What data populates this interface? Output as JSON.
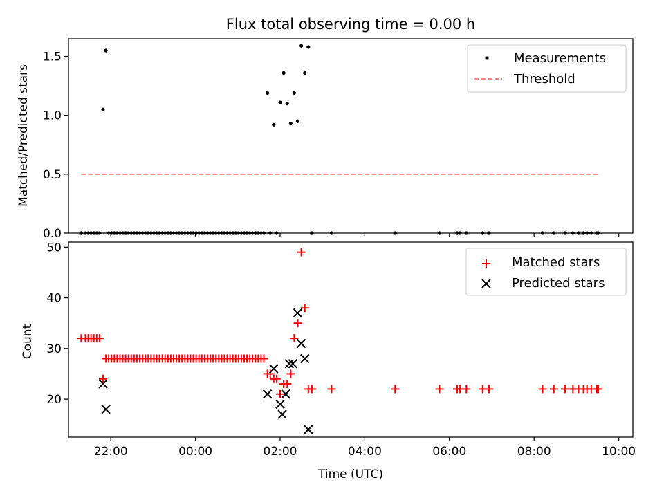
{
  "title": "Flux total observing time = 0.00 h",
  "chart_data": [
    {
      "type": "scatter",
      "ylabel": "Matched/Predicted stars",
      "xlim": [
        "21:00",
        "10:20"
      ],
      "ylim": [
        0,
        1.65
      ],
      "yticks": [
        0.0,
        0.5,
        1.0,
        1.5
      ],
      "yticklabels": [
        "0.0",
        "0.5",
        "1.0",
        "1.5"
      ],
      "xticks": [
        "22:00",
        "00:00",
        "02:00",
        "04:00",
        "06:00",
        "08:00",
        "10:00"
      ],
      "legend": {
        "placement": "upper right",
        "entries": [
          "Measurements",
          "Threshold"
        ]
      },
      "series": [
        {
          "name": "Measurements",
          "marker": "dot",
          "color": "#000000",
          "points": [
            [
              "21:18",
              0
            ],
            [
              "21:24",
              0
            ],
            [
              "21:28",
              0
            ],
            [
              "21:32",
              0
            ],
            [
              "21:36",
              0
            ],
            [
              "21:40",
              0
            ],
            [
              "21:44",
              0
            ],
            [
              "21:49",
              1.05
            ],
            [
              "21:53",
              1.55
            ],
            [
              "21:57",
              0
            ],
            [
              "22:01",
              0
            ],
            [
              "22:05",
              0
            ],
            [
              "22:09",
              0
            ],
            [
              "22:13",
              0
            ],
            [
              "22:17",
              0
            ],
            [
              "22:21",
              0
            ],
            [
              "22:25",
              0
            ],
            [
              "22:29",
              0
            ],
            [
              "22:33",
              0
            ],
            [
              "22:37",
              0
            ],
            [
              "22:41",
              0
            ],
            [
              "22:45",
              0
            ],
            [
              "22:49",
              0
            ],
            [
              "22:53",
              0
            ],
            [
              "22:57",
              0
            ],
            [
              "23:01",
              0
            ],
            [
              "23:05",
              0
            ],
            [
              "23:09",
              0
            ],
            [
              "23:13",
              0
            ],
            [
              "23:17",
              0
            ],
            [
              "23:21",
              0
            ],
            [
              "23:25",
              0
            ],
            [
              "23:29",
              0
            ],
            [
              "23:33",
              0
            ],
            [
              "23:37",
              0
            ],
            [
              "23:41",
              0
            ],
            [
              "23:45",
              0
            ],
            [
              "23:49",
              0
            ],
            [
              "23:53",
              0
            ],
            [
              "23:57",
              0
            ],
            [
              "00:01",
              0
            ],
            [
              "00:05",
              0
            ],
            [
              "00:09",
              0
            ],
            [
              "00:13",
              0
            ],
            [
              "00:17",
              0
            ],
            [
              "00:21",
              0
            ],
            [
              "00:25",
              0
            ],
            [
              "00:29",
              0
            ],
            [
              "00:33",
              0
            ],
            [
              "00:37",
              0
            ],
            [
              "00:41",
              0
            ],
            [
              "00:45",
              0
            ],
            [
              "00:49",
              0
            ],
            [
              "00:53",
              0
            ],
            [
              "00:57",
              0
            ],
            [
              "01:01",
              0
            ],
            [
              "01:05",
              0
            ],
            [
              "01:09",
              0
            ],
            [
              "01:13",
              0
            ],
            [
              "01:17",
              0
            ],
            [
              "01:21",
              0
            ],
            [
              "01:25",
              0
            ],
            [
              "01:29",
              0
            ],
            [
              "01:33",
              0
            ],
            [
              "01:37",
              0
            ],
            [
              "01:42",
              1.19
            ],
            [
              "01:46",
              0
            ],
            [
              "01:51",
              0.92
            ],
            [
              "01:55",
              0
            ],
            [
              "02:00",
              1.11
            ],
            [
              "02:05",
              1.36
            ],
            [
              "02:10",
              1.1
            ],
            [
              "02:15",
              0.93
            ],
            [
              "02:20",
              1.19
            ],
            [
              "02:25",
              0.95
            ],
            [
              "02:30",
              1.59
            ],
            [
              "02:35",
              1.36
            ],
            [
              "02:40",
              1.58
            ],
            [
              "02:45",
              0
            ],
            [
              "03:13",
              0
            ],
            [
              "04:43",
              0
            ],
            [
              "05:46",
              0
            ],
            [
              "06:11",
              0
            ],
            [
              "06:15",
              0
            ],
            [
              "06:24",
              0
            ],
            [
              "06:47",
              0
            ],
            [
              "06:56",
              0
            ],
            [
              "08:12",
              0
            ],
            [
              "08:28",
              0
            ],
            [
              "08:44",
              0
            ],
            [
              "08:55",
              0
            ],
            [
              "09:03",
              0
            ],
            [
              "09:10",
              0
            ],
            [
              "09:15",
              0
            ],
            [
              "09:21",
              0
            ],
            [
              "09:29",
              0
            ],
            [
              "09:31",
              0
            ]
          ]
        },
        {
          "name": "Threshold",
          "style": "dashed",
          "color": "#ff7f7f",
          "points": [
            [
              "21:18",
              0.5
            ],
            [
              "09:31",
              0.5
            ]
          ]
        }
      ]
    },
    {
      "type": "scatter",
      "xlabel": "Time (UTC)",
      "ylabel": "Count",
      "xlim": [
        "21:00",
        "10:20"
      ],
      "ylim": [
        12.5,
        51
      ],
      "yticks": [
        20,
        30,
        40,
        50
      ],
      "yticklabels": [
        "20",
        "30",
        "40",
        "50"
      ],
      "xticks": [
        "22:00",
        "00:00",
        "02:00",
        "04:00",
        "06:00",
        "08:00",
        "10:00"
      ],
      "xticklabels": [
        "22:00",
        "00:00",
        "02:00",
        "04:00",
        "06:00",
        "08:00",
        "10:00"
      ],
      "legend": {
        "placement": "upper right",
        "entries": [
          "Matched stars",
          "Predicted stars"
        ]
      },
      "series": [
        {
          "name": "Matched stars",
          "marker": "plus",
          "color": "#ff0000",
          "points": [
            [
              "21:18",
              32
            ],
            [
              "21:24",
              32
            ],
            [
              "21:28",
              32
            ],
            [
              "21:32",
              32
            ],
            [
              "21:36",
              32
            ],
            [
              "21:40",
              32
            ],
            [
              "21:44",
              32
            ],
            [
              "21:49",
              24
            ],
            [
              "21:53",
              28
            ],
            [
              "21:57",
              28
            ],
            [
              "22:01",
              28
            ],
            [
              "22:05",
              28
            ],
            [
              "22:09",
              28
            ],
            [
              "22:13",
              28
            ],
            [
              "22:17",
              28
            ],
            [
              "22:21",
              28
            ],
            [
              "22:25",
              28
            ],
            [
              "22:29",
              28
            ],
            [
              "22:33",
              28
            ],
            [
              "22:37",
              28
            ],
            [
              "22:41",
              28
            ],
            [
              "22:45",
              28
            ],
            [
              "22:49",
              28
            ],
            [
              "22:53",
              28
            ],
            [
              "22:57",
              28
            ],
            [
              "23:01",
              28
            ],
            [
              "23:05",
              28
            ],
            [
              "23:09",
              28
            ],
            [
              "23:13",
              28
            ],
            [
              "23:17",
              28
            ],
            [
              "23:21",
              28
            ],
            [
              "23:25",
              28
            ],
            [
              "23:29",
              28
            ],
            [
              "23:33",
              28
            ],
            [
              "23:37",
              28
            ],
            [
              "23:41",
              28
            ],
            [
              "23:45",
              28
            ],
            [
              "23:49",
              28
            ],
            [
              "23:53",
              28
            ],
            [
              "23:57",
              28
            ],
            [
              "00:01",
              28
            ],
            [
              "00:05",
              28
            ],
            [
              "00:09",
              28
            ],
            [
              "00:13",
              28
            ],
            [
              "00:17",
              28
            ],
            [
              "00:21",
              28
            ],
            [
              "00:25",
              28
            ],
            [
              "00:29",
              28
            ],
            [
              "00:33",
              28
            ],
            [
              "00:37",
              28
            ],
            [
              "00:41",
              28
            ],
            [
              "00:45",
              28
            ],
            [
              "00:49",
              28
            ],
            [
              "00:53",
              28
            ],
            [
              "00:57",
              28
            ],
            [
              "01:01",
              28
            ],
            [
              "01:05",
              28
            ],
            [
              "01:09",
              28
            ],
            [
              "01:13",
              28
            ],
            [
              "01:17",
              28
            ],
            [
              "01:21",
              28
            ],
            [
              "01:25",
              28
            ],
            [
              "01:29",
              28
            ],
            [
              "01:33",
              28
            ],
            [
              "01:37",
              28
            ],
            [
              "01:42",
              25
            ],
            [
              "01:46",
              25
            ],
            [
              "01:51",
              24
            ],
            [
              "01:55",
              24
            ],
            [
              "02:00",
              21
            ],
            [
              "02:05",
              23
            ],
            [
              "02:10",
              23
            ],
            [
              "02:15",
              25
            ],
            [
              "02:20",
              32
            ],
            [
              "02:25",
              35
            ],
            [
              "02:30",
              49
            ],
            [
              "02:35",
              38
            ],
            [
              "02:40",
              22
            ],
            [
              "02:45",
              22
            ],
            [
              "03:13",
              22
            ],
            [
              "04:43",
              22
            ],
            [
              "05:46",
              22
            ],
            [
              "06:11",
              22
            ],
            [
              "06:15",
              22
            ],
            [
              "06:24",
              22
            ],
            [
              "06:47",
              22
            ],
            [
              "06:56",
              22
            ],
            [
              "08:12",
              22
            ],
            [
              "08:28",
              22
            ],
            [
              "08:44",
              22
            ],
            [
              "08:55",
              22
            ],
            [
              "09:03",
              22
            ],
            [
              "09:10",
              22
            ],
            [
              "09:15",
              22
            ],
            [
              "09:21",
              22
            ],
            [
              "09:29",
              22
            ],
            [
              "09:31",
              22
            ]
          ]
        },
        {
          "name": "Predicted stars",
          "marker": "x",
          "color": "#000000",
          "points": [
            [
              "21:49",
              23
            ],
            [
              "21:53",
              18
            ],
            [
              "01:42",
              21
            ],
            [
              "01:51",
              26
            ],
            [
              "02:00",
              19
            ],
            [
              "02:03",
              17
            ],
            [
              "02:08",
              21
            ],
            [
              "02:13",
              27
            ],
            [
              "02:18",
              27
            ],
            [
              "02:25",
              37
            ],
            [
              "02:30",
              31
            ],
            [
              "02:35",
              28
            ],
            [
              "02:40",
              14
            ]
          ]
        }
      ]
    }
  ]
}
